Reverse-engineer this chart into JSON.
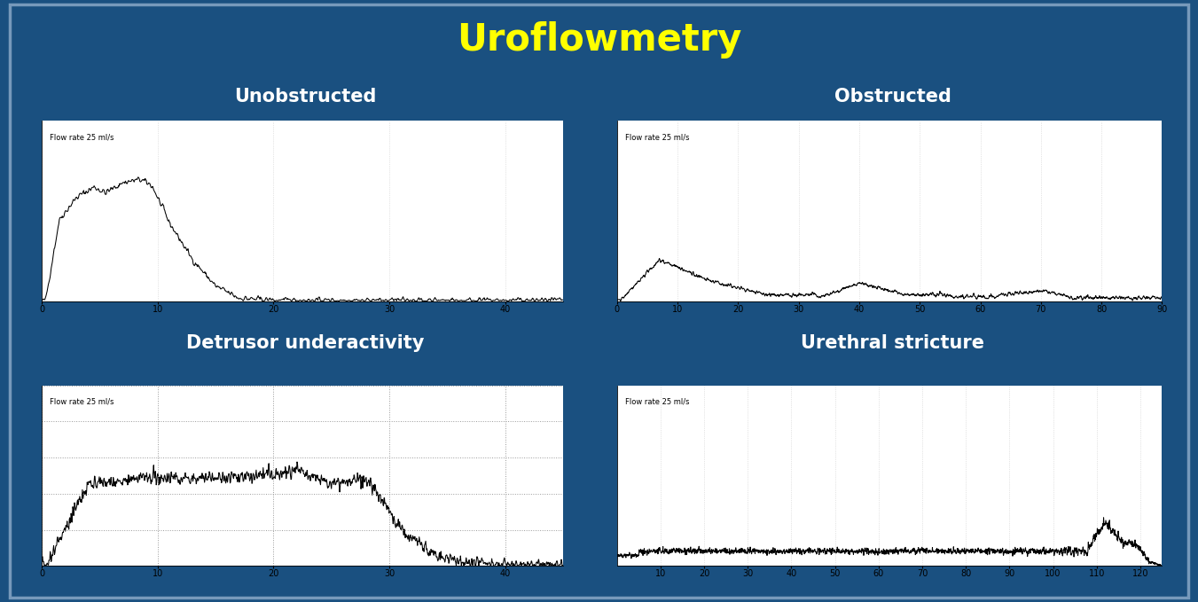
{
  "title": "Uroflowmetry",
  "title_color": "#FFFF00",
  "bg_color": "#1a5080",
  "panel_bg": "#ffffff",
  "subtitle_color": "#ffffff",
  "subtitle_fontsize": 15,
  "panel_labels": [
    "Unobstructed",
    "Obstructed",
    "Detrusor underactivity",
    "Urethral stricture"
  ],
  "flow_label": "Flow rate 25 ml/s",
  "panels": [
    {
      "xlim": [
        0,
        45
      ],
      "xticks": [
        0,
        10,
        20,
        30,
        40
      ],
      "ylim": [
        0,
        1.0
      ],
      "has_dotgrid": false
    },
    {
      "xlim": [
        0,
        90
      ],
      "xticks": [
        0,
        10,
        20,
        30,
        40,
        50,
        60,
        70,
        80,
        90
      ],
      "ylim": [
        0,
        1.0
      ],
      "has_dotgrid": false
    },
    {
      "xlim": [
        0,
        45
      ],
      "xticks": [
        0,
        10,
        20,
        30,
        40
      ],
      "ylim": [
        0,
        1.0
      ],
      "has_dotgrid": true
    },
    {
      "xlim": [
        0,
        125
      ],
      "xticks": [
        10,
        20,
        30,
        40,
        50,
        60,
        70,
        80,
        90,
        100,
        110,
        120
      ],
      "ylim": [
        0,
        1.0
      ],
      "has_dotgrid": false
    }
  ]
}
